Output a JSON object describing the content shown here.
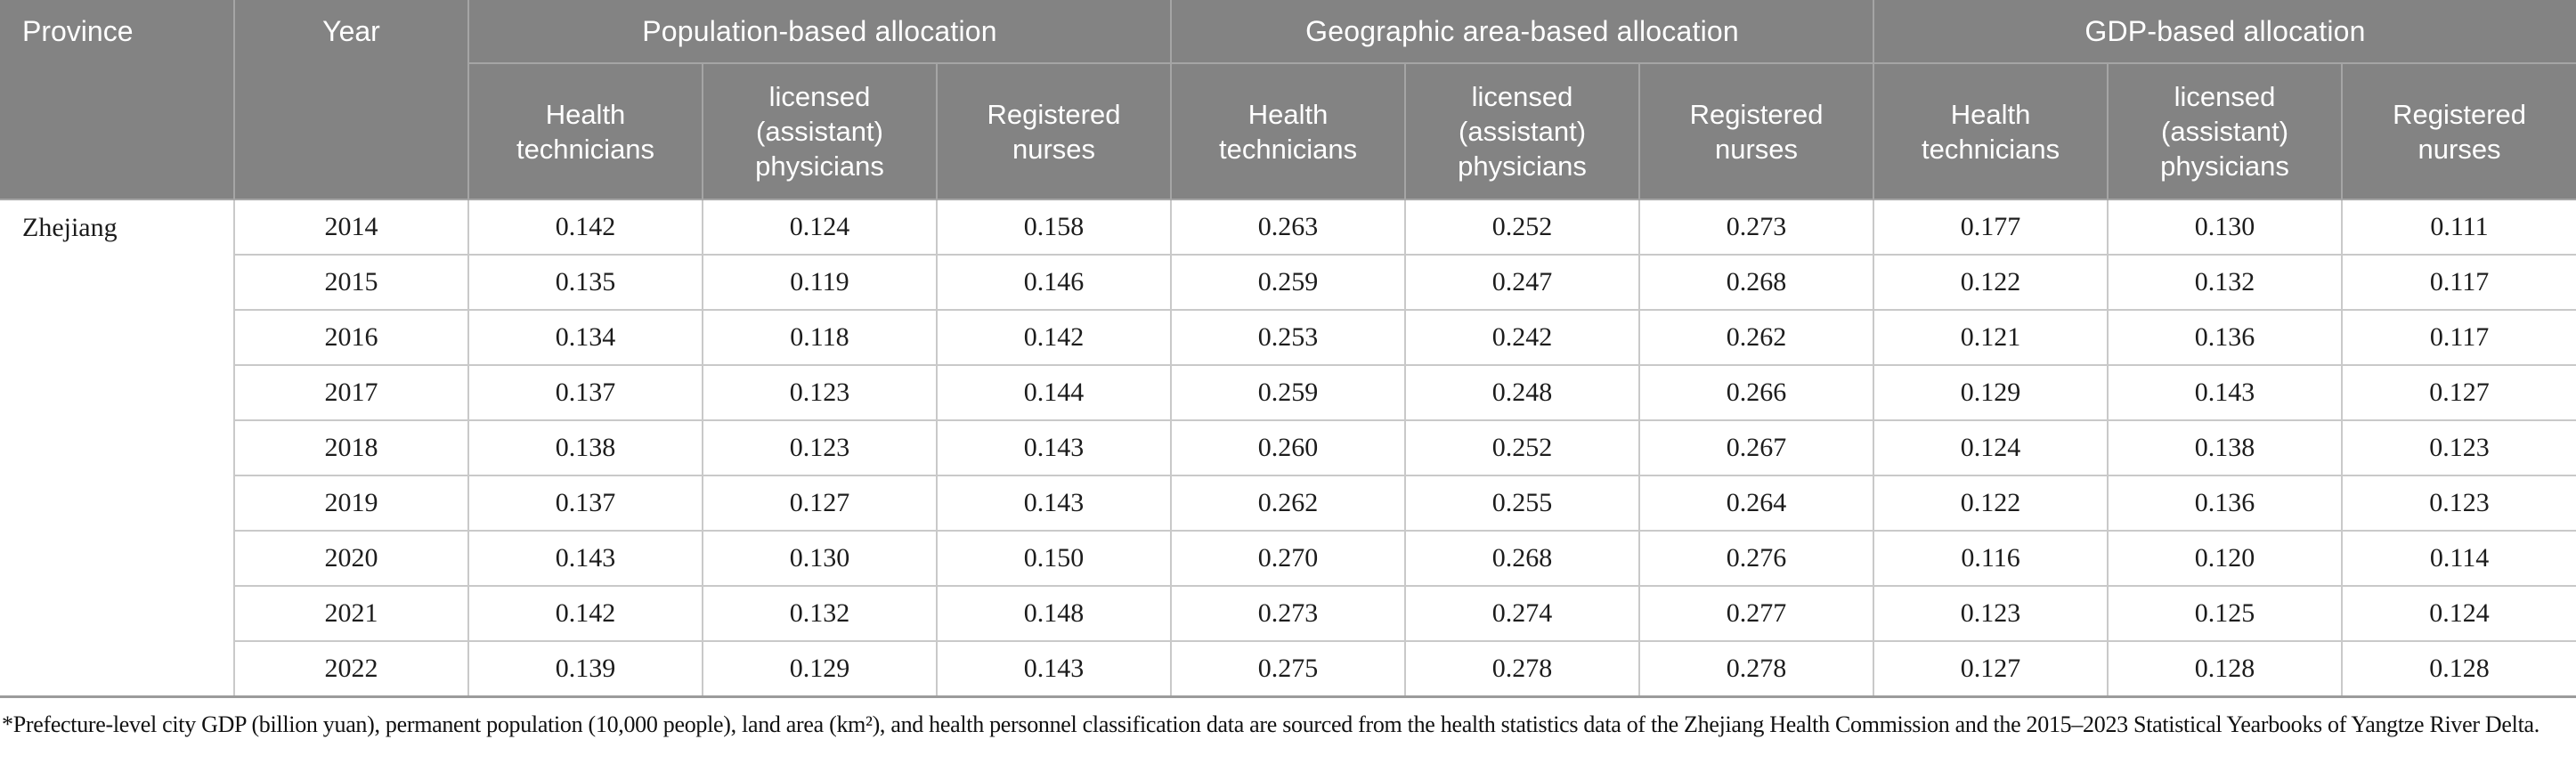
{
  "chart_data": {
    "type": "table",
    "header": {
      "province": "Province",
      "year": "Year",
      "groups": [
        "Population-based allocation",
        "Geographic area-based allocation",
        "GDP-based allocation"
      ],
      "subheaders": [
        "Health technicians",
        "licensed (assistant) physicians",
        "Registered nurses"
      ]
    },
    "province_value": "Zhejiang",
    "rows": [
      {
        "year": "2014",
        "values": [
          "0.142",
          "0.124",
          "0.158",
          "0.263",
          "0.252",
          "0.273",
          "0.177",
          "0.130",
          "0.111"
        ]
      },
      {
        "year": "2015",
        "values": [
          "0.135",
          "0.119",
          "0.146",
          "0.259",
          "0.247",
          "0.268",
          "0.122",
          "0.132",
          "0.117"
        ]
      },
      {
        "year": "2016",
        "values": [
          "0.134",
          "0.118",
          "0.142",
          "0.253",
          "0.242",
          "0.262",
          "0.121",
          "0.136",
          "0.117"
        ]
      },
      {
        "year": "2017",
        "values": [
          "0.137",
          "0.123",
          "0.144",
          "0.259",
          "0.248",
          "0.266",
          "0.129",
          "0.143",
          "0.127"
        ]
      },
      {
        "year": "2018",
        "values": [
          "0.138",
          "0.123",
          "0.143",
          "0.260",
          "0.252",
          "0.267",
          "0.124",
          "0.138",
          "0.123"
        ]
      },
      {
        "year": "2019",
        "values": [
          "0.137",
          "0.127",
          "0.143",
          "0.262",
          "0.255",
          "0.264",
          "0.122",
          "0.136",
          "0.123"
        ]
      },
      {
        "year": "2020",
        "values": [
          "0.143",
          "0.130",
          "0.150",
          "0.270",
          "0.268",
          "0.276",
          "0.116",
          "0.120",
          "0.114"
        ]
      },
      {
        "year": "2021",
        "values": [
          "0.142",
          "0.132",
          "0.148",
          "0.273",
          "0.274",
          "0.277",
          "0.123",
          "0.125",
          "0.124"
        ]
      },
      {
        "year": "2022",
        "values": [
          "0.139",
          "0.129",
          "0.143",
          "0.275",
          "0.278",
          "0.278",
          "0.127",
          "0.128",
          "0.128"
        ]
      }
    ]
  },
  "footnote": {
    "text": "*Prefecture-level city GDP (billion yuan), permanent population (10,000 people), land area (km²), and health personnel classification data are sourced from the health statistics data of the Zhejiang Health Commission and the 2015–2023 Statistical Yearbooks of Yangtze River Delta."
  },
  "colors": {
    "header_bg": "#838383",
    "header_text": "#ffffff",
    "header_border": "#a5a5a5",
    "body_border": "#c9c9c9",
    "table_bottom_border": "#9b9b9b",
    "body_text": "#1c1c1c"
  }
}
